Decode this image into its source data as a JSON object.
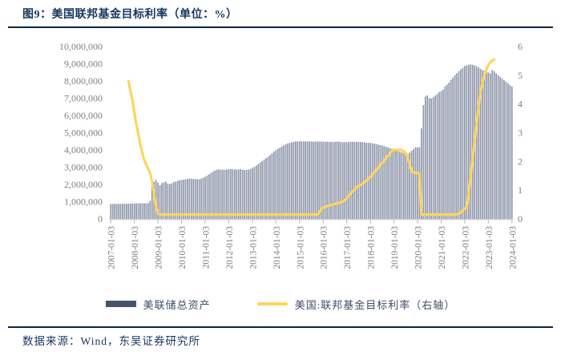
{
  "figure": {
    "title": "图9：美国联邦基金目标利率（单位：%）",
    "source": "数据来源：Wind，东吴证券研究所"
  },
  "colors": {
    "title_text": "#17365D",
    "rule": "#10243E",
    "axis_text": "#808080",
    "axis_line": "#C9C9C9",
    "bar_fill": "#8E97AA",
    "bar_legend_swatch": "#44546A",
    "rate_line": "#FFD45F",
    "legend_text": "#3F4D66"
  },
  "chart_data": {
    "type": "bar",
    "subtype": "combo-bar-line",
    "title": "图9：美国联邦基金目标利率（单位：%）",
    "x": {
      "start": "2007-01",
      "end": "2024-01",
      "tick_labels": [
        "2007-01-03",
        "2008-01-03",
        "2009-01-03",
        "2010-01-03",
        "2011-01-03",
        "2012-01-03",
        "2013-01-03",
        "2014-01-03",
        "2015-01-03",
        "2016-01-03",
        "2017-01-03",
        "2018-01-03",
        "2019-01-03",
        "2020-01-03",
        "2021-01-03",
        "2022-01-03",
        "2023-01-03",
        "2024-01-03"
      ]
    },
    "y_left": {
      "min": 0,
      "max": 10000000,
      "tick_labels": [
        "0",
        "1,000,000",
        "2,000,000",
        "3,000,000",
        "4,000,000",
        "5,000,000",
        "6,000,000",
        "7,000,000",
        "8,000,000",
        "9,000,000",
        "10,000,000"
      ]
    },
    "y_right": {
      "min": 0,
      "max": 6,
      "tick_labels": [
        "0",
        "1",
        "2",
        "3",
        "4",
        "5",
        "6"
      ]
    },
    "grid": false,
    "legend_position": "bottom-center",
    "series": [
      {
        "name": "美联储总资产",
        "type": "bar",
        "axis": "left",
        "color": "#8E97AA",
        "legend_color": "#44546A",
        "values": [
          870000,
          868000,
          872000,
          870000,
          873000,
          875000,
          872000,
          874000,
          878000,
          880000,
          885000,
          895000,
          900000,
          898000,
          902000,
          900000,
          903000,
          905000,
          908000,
          910000,
          1050000,
          1950000,
          2150000,
          2270000,
          2100000,
          1950000,
          2080000,
          2110000,
          2160000,
          2050000,
          2010000,
          2060000,
          2140000,
          2160000,
          2210000,
          2250000,
          2260000,
          2280000,
          2300000,
          2320000,
          2340000,
          2330000,
          2320000,
          2310000,
          2300000,
          2290000,
          2330000,
          2390000,
          2440000,
          2510000,
          2590000,
          2670000,
          2740000,
          2810000,
          2860000,
          2870000,
          2860000,
          2850000,
          2850000,
          2870000,
          2880000,
          2890000,
          2880000,
          2870000,
          2860000,
          2870000,
          2880000,
          2850000,
          2840000,
          2850000,
          2860000,
          2900000,
          2950000,
          3020000,
          3100000,
          3180000,
          3270000,
          3350000,
          3440000,
          3520000,
          3610000,
          3700000,
          3800000,
          3900000,
          3990000,
          4060000,
          4130000,
          4200000,
          4270000,
          4330000,
          4380000,
          4410000,
          4440000,
          4470000,
          4490000,
          4500000,
          4500000,
          4500000,
          4490000,
          4500000,
          4500000,
          4500000,
          4490000,
          4480000,
          4480000,
          4490000,
          4490000,
          4490000,
          4480000,
          4470000,
          4480000,
          4470000,
          4470000,
          4460000,
          4470000,
          4480000,
          4480000,
          4460000,
          4450000,
          4450000,
          4450000,
          4460000,
          4470000,
          4470000,
          4470000,
          4460000,
          4470000,
          4460000,
          4460000,
          4440000,
          4410000,
          4410000,
          4410000,
          4390000,
          4360000,
          4340000,
          4310000,
          4290000,
          4260000,
          4220000,
          4180000,
          4140000,
          4100000,
          4080000,
          4050000,
          3990000,
          3940000,
          3890000,
          3850000,
          3810000,
          3780000,
          3760000,
          3850000,
          3960000,
          4050000,
          4170000,
          4150000,
          4160000,
          5250000,
          6600000,
          7100000,
          7170000,
          7010000,
          6980000,
          7060000,
          7150000,
          7240000,
          7360000,
          7410000,
          7500000,
          7690000,
          7790000,
          7900000,
          8060000,
          8200000,
          8340000,
          8450000,
          8560000,
          8670000,
          8760000,
          8870000,
          8910000,
          8940000,
          8960000,
          8940000,
          8910000,
          8850000,
          8790000,
          8700000,
          8630000,
          8580000,
          8550000,
          8500000,
          8440000,
          8640000,
          8560000,
          8440000,
          8340000,
          8240000,
          8150000,
          8050000,
          7960000,
          7860000,
          7760000,
          7680000
        ]
      },
      {
        "name": "美国:联邦基金目标利率（右轴）",
        "type": "line",
        "axis": "right",
        "color": "#FFD45F",
        "values": [
          null,
          null,
          null,
          null,
          null,
          null,
          null,
          null,
          null,
          4.8,
          4.45,
          4.15,
          3.7,
          3.3,
          2.95,
          2.6,
          2.3,
          2.05,
          1.9,
          1.75,
          1.6,
          1.3,
          0.85,
          0.4,
          0.2,
          0.15,
          0.15,
          0.15,
          0.15,
          0.15,
          0.15,
          0.15,
          0.15,
          0.15,
          0.15,
          0.15,
          0.15,
          0.15,
          0.15,
          0.15,
          0.15,
          0.15,
          0.15,
          0.15,
          0.15,
          0.15,
          0.15,
          0.15,
          0.15,
          0.15,
          0.15,
          0.15,
          0.15,
          0.15,
          0.15,
          0.15,
          0.15,
          0.15,
          0.15,
          0.15,
          0.15,
          0.15,
          0.15,
          0.15,
          0.15,
          0.15,
          0.15,
          0.15,
          0.15,
          0.15,
          0.15,
          0.15,
          0.15,
          0.15,
          0.15,
          0.15,
          0.15,
          0.15,
          0.15,
          0.15,
          0.15,
          0.15,
          0.15,
          0.15,
          0.15,
          0.15,
          0.15,
          0.15,
          0.15,
          0.15,
          0.15,
          0.15,
          0.15,
          0.15,
          0.15,
          0.15,
          0.15,
          0.15,
          0.15,
          0.15,
          0.15,
          0.15,
          0.15,
          0.15,
          0.15,
          0.15,
          0.2,
          0.35,
          0.4,
          0.42,
          0.44,
          0.46,
          0.48,
          0.5,
          0.52,
          0.54,
          0.56,
          0.58,
          0.6,
          0.65,
          0.72,
          0.8,
          0.9,
          0.96,
          1.02,
          1.1,
          1.15,
          1.18,
          1.22,
          1.28,
          1.33,
          1.4,
          1.46,
          1.52,
          1.65,
          1.7,
          1.76,
          1.9,
          1.95,
          2.0,
          2.15,
          2.2,
          2.25,
          2.4,
          2.4,
          2.4,
          2.4,
          2.4,
          2.4,
          2.35,
          2.3,
          2.15,
          1.9,
          1.65,
          1.62,
          1.6,
          1.6,
          1.55,
          0.15,
          0.15,
          0.15,
          0.15,
          0.15,
          0.15,
          0.15,
          0.15,
          0.15,
          0.15,
          0.15,
          0.15,
          0.15,
          0.15,
          0.15,
          0.15,
          0.15,
          0.15,
          0.15,
          0.18,
          0.22,
          0.3,
          0.35,
          0.4,
          0.9,
          1.5,
          2.1,
          2.7,
          3.3,
          3.9,
          4.4,
          4.75,
          5.0,
          5.2,
          5.35,
          5.45,
          5.5,
          5.55,
          null,
          null,
          null,
          null,
          null,
          null,
          null,
          null,
          null
        ]
      }
    ]
  }
}
